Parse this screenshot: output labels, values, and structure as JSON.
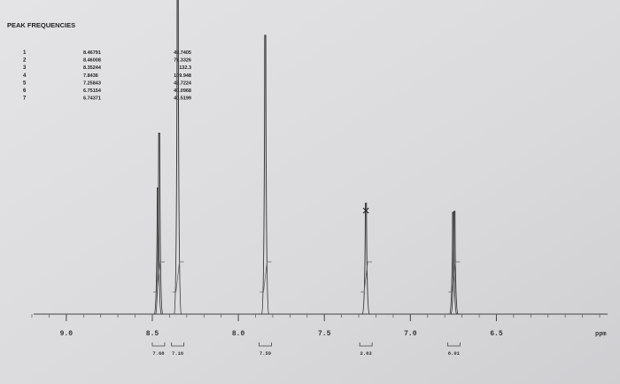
{
  "chart_data": {
    "type": "nmr",
    "title": "PEAK FREQUENCIES",
    "peaks": [
      {
        "number": 1,
        "ppm": 8.46791,
        "intensity": 49.7405
      },
      {
        "number": 2,
        "ppm": 8.46008,
        "intensity": 71.3326
      },
      {
        "number": 3,
        "ppm": 8.35244,
        "intensity": 132.3
      },
      {
        "number": 4,
        "ppm": 7.8436,
        "intensity": 109.948
      },
      {
        "number": 5,
        "ppm": 7.25843,
        "intensity": 43.7224
      },
      {
        "number": 6,
        "ppm": 6.75154,
        "intensity": 40.0968
      },
      {
        "number": 7,
        "ppm": 6.74371,
        "intensity": 40.5199
      }
    ],
    "integrals": [
      7.68,
      7.16,
      7.59,
      2.83,
      8.01
    ],
    "xlabel": "ppm",
    "xlim": [
      9.2,
      5.9
    ],
    "xticks": [
      {
        "value": 9,
        "label": "9.0"
      },
      8.5,
      {
        "value": 8,
        "label": "8.0"
      },
      7.5,
      {
        "value": 7,
        "label": "7.0"
      },
      6.5
    ],
    "ylim": [
      0,
      120
    ],
    "color": "#333333"
  }
}
